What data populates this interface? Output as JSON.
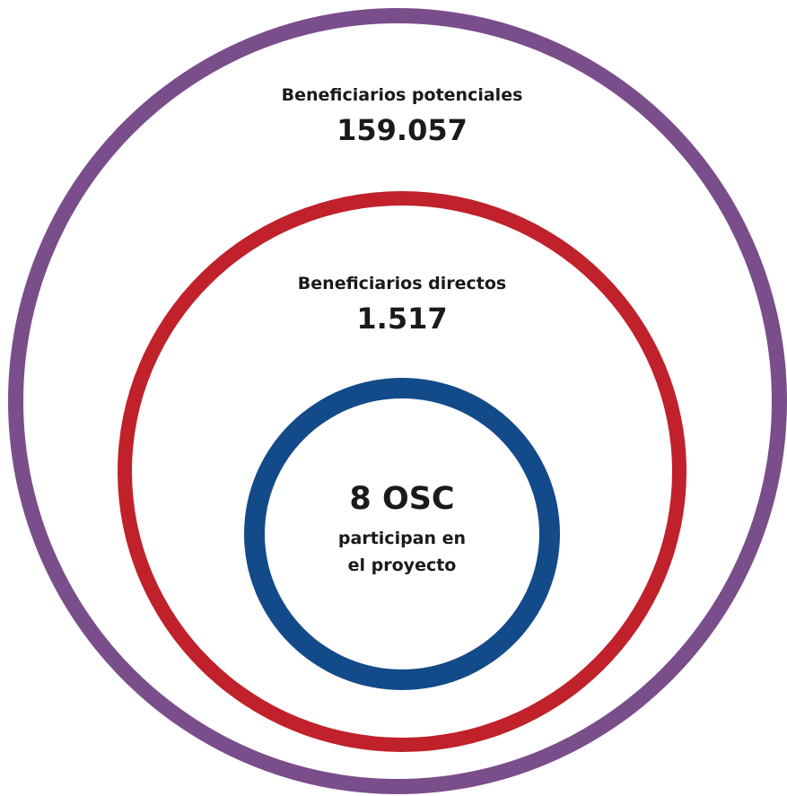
{
  "rings": {
    "outer": {
      "title": "Beneficiarios potenciales",
      "value": "159.057",
      "color": "#7a4d8b"
    },
    "middle": {
      "title": "Beneficiarios directos",
      "value": "1.517",
      "color": "#c0212b"
    },
    "inner": {
      "value": "8 OSC",
      "line1": "participan en",
      "line2": "el proyecto",
      "color": "#134a8a"
    }
  }
}
